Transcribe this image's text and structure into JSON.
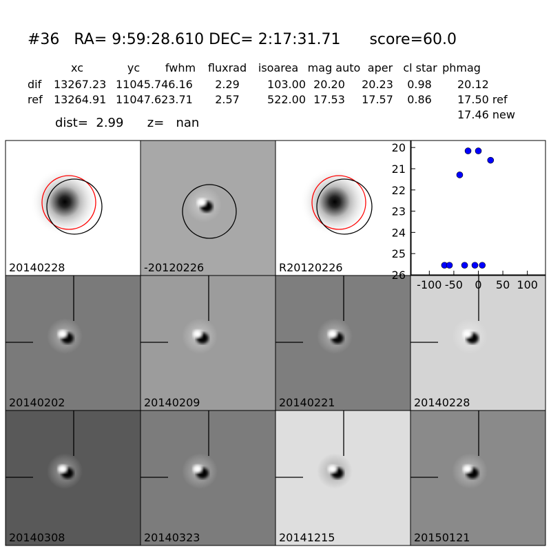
{
  "header": {
    "title": "#36   RA= 9:59:28.610 DEC= 2:17:31.71      score=60.0",
    "distance": "dist=  2.99      z=   nan"
  },
  "table": {
    "columns": [
      "xc",
      "yc",
      "fwhm",
      "fluxrad",
      "isoarea",
      "mag auto",
      "aper",
      "cl star",
      "phmag"
    ],
    "rows": [
      [
        "dif",
        "13267.23",
        "11045.74",
        "6.16",
        "2.29",
        "103.00",
        "20.20",
        "20.23",
        "0.98",
        "20.12"
      ],
      [
        "ref",
        "13264.91",
        "11047.62",
        "3.71",
        "2.57",
        "522.00",
        "17.53",
        "17.57",
        "0.86",
        "17.50 ref"
      ],
      [
        "",
        "",
        "",
        "",
        "",
        "",
        "",
        "",
        "",
        "17.46 new"
      ]
    ]
  },
  "panels": [
    {
      "label": "20140228"
    },
    {
      "label": "-20120226"
    },
    {
      "label": "R20120226"
    },
    {
      "label": "20140202"
    },
    {
      "label": "20140209"
    },
    {
      "label": "20140221"
    },
    {
      "label": "20140228",
      "label_color": "#ff0000"
    },
    {
      "label": "20140308"
    },
    {
      "label": "20140323"
    },
    {
      "label": "20141215"
    },
    {
      "label": "20150121"
    }
  ],
  "chart_data": {
    "type": "scatter",
    "x": [
      -21,
      0,
      25,
      -38,
      -69,
      -59,
      -28,
      -7,
      8
    ],
    "values": [
      20.16,
      20.16,
      20.6,
      21.29,
      25.55,
      25.55,
      25.55,
      25.55,
      25.55
    ],
    "color": "#0000ff",
    "xlim": [
      -137,
      137
    ],
    "ylim": [
      26,
      19.67
    ],
    "xticks": [
      -100,
      -50,
      0,
      50,
      100
    ],
    "yticks": [
      20,
      21,
      22,
      23,
      24,
      25,
      26
    ]
  }
}
